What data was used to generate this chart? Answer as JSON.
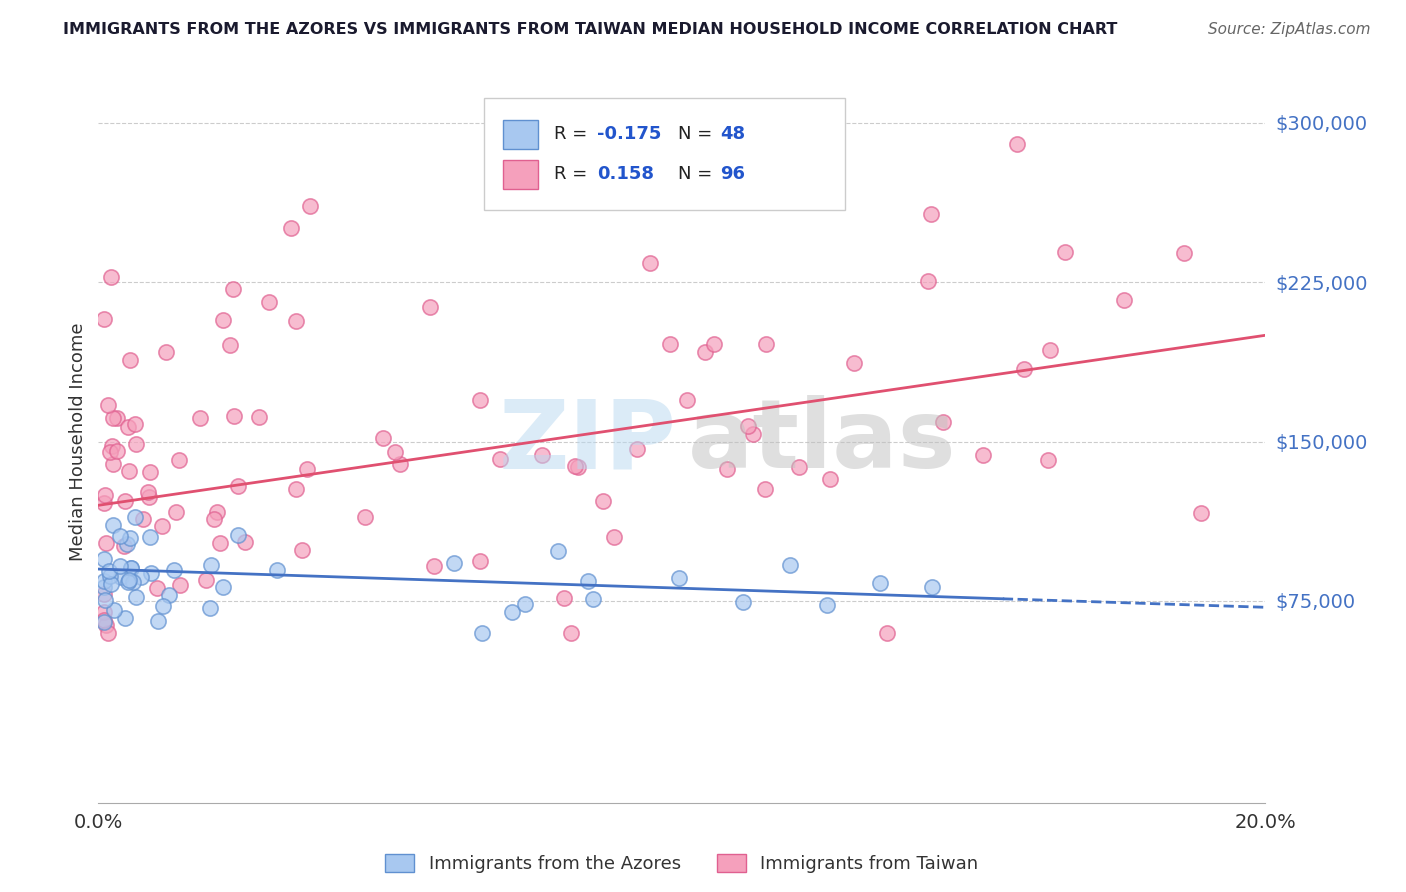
{
  "title": "IMMIGRANTS FROM THE AZORES VS IMMIGRANTS FROM TAIWAN MEDIAN HOUSEHOLD INCOME CORRELATION CHART",
  "source": "Source: ZipAtlas.com",
  "ylabel": "Median Household Income",
  "xlim": [
    0.0,
    0.2
  ],
  "ylim": [
    -20000,
    320000
  ],
  "ytick_vals": [
    75000,
    150000,
    225000,
    300000
  ],
  "ytick_labels": [
    "$75,000",
    "$150,000",
    "$225,000",
    "$300,000"
  ],
  "xtick_vals": [
    0.0,
    0.04,
    0.08,
    0.12,
    0.16,
    0.2
  ],
  "xtick_labels": [
    "0.0%",
    "",
    "",
    "",
    "",
    "20.0%"
  ],
  "azores_R": -0.175,
  "azores_N": 48,
  "taiwan_R": 0.158,
  "taiwan_N": 96,
  "azores_color": "#A8C8F0",
  "taiwan_color": "#F5A0BC",
  "azores_edge_color": "#6090D0",
  "taiwan_edge_color": "#E06090",
  "azores_line_color": "#4472C4",
  "taiwan_line_color": "#E05070",
  "background_color": "#FFFFFF",
  "grid_color": "#CCCCCC",
  "title_color": "#1a1a2e",
  "source_color": "#666666",
  "ytick_color": "#4472C4",
  "xtick_color": "#333333",
  "ylabel_color": "#333333",
  "watermark_zip_color": "#B8D8F0",
  "watermark_atlas_color": "#C0C0C0"
}
